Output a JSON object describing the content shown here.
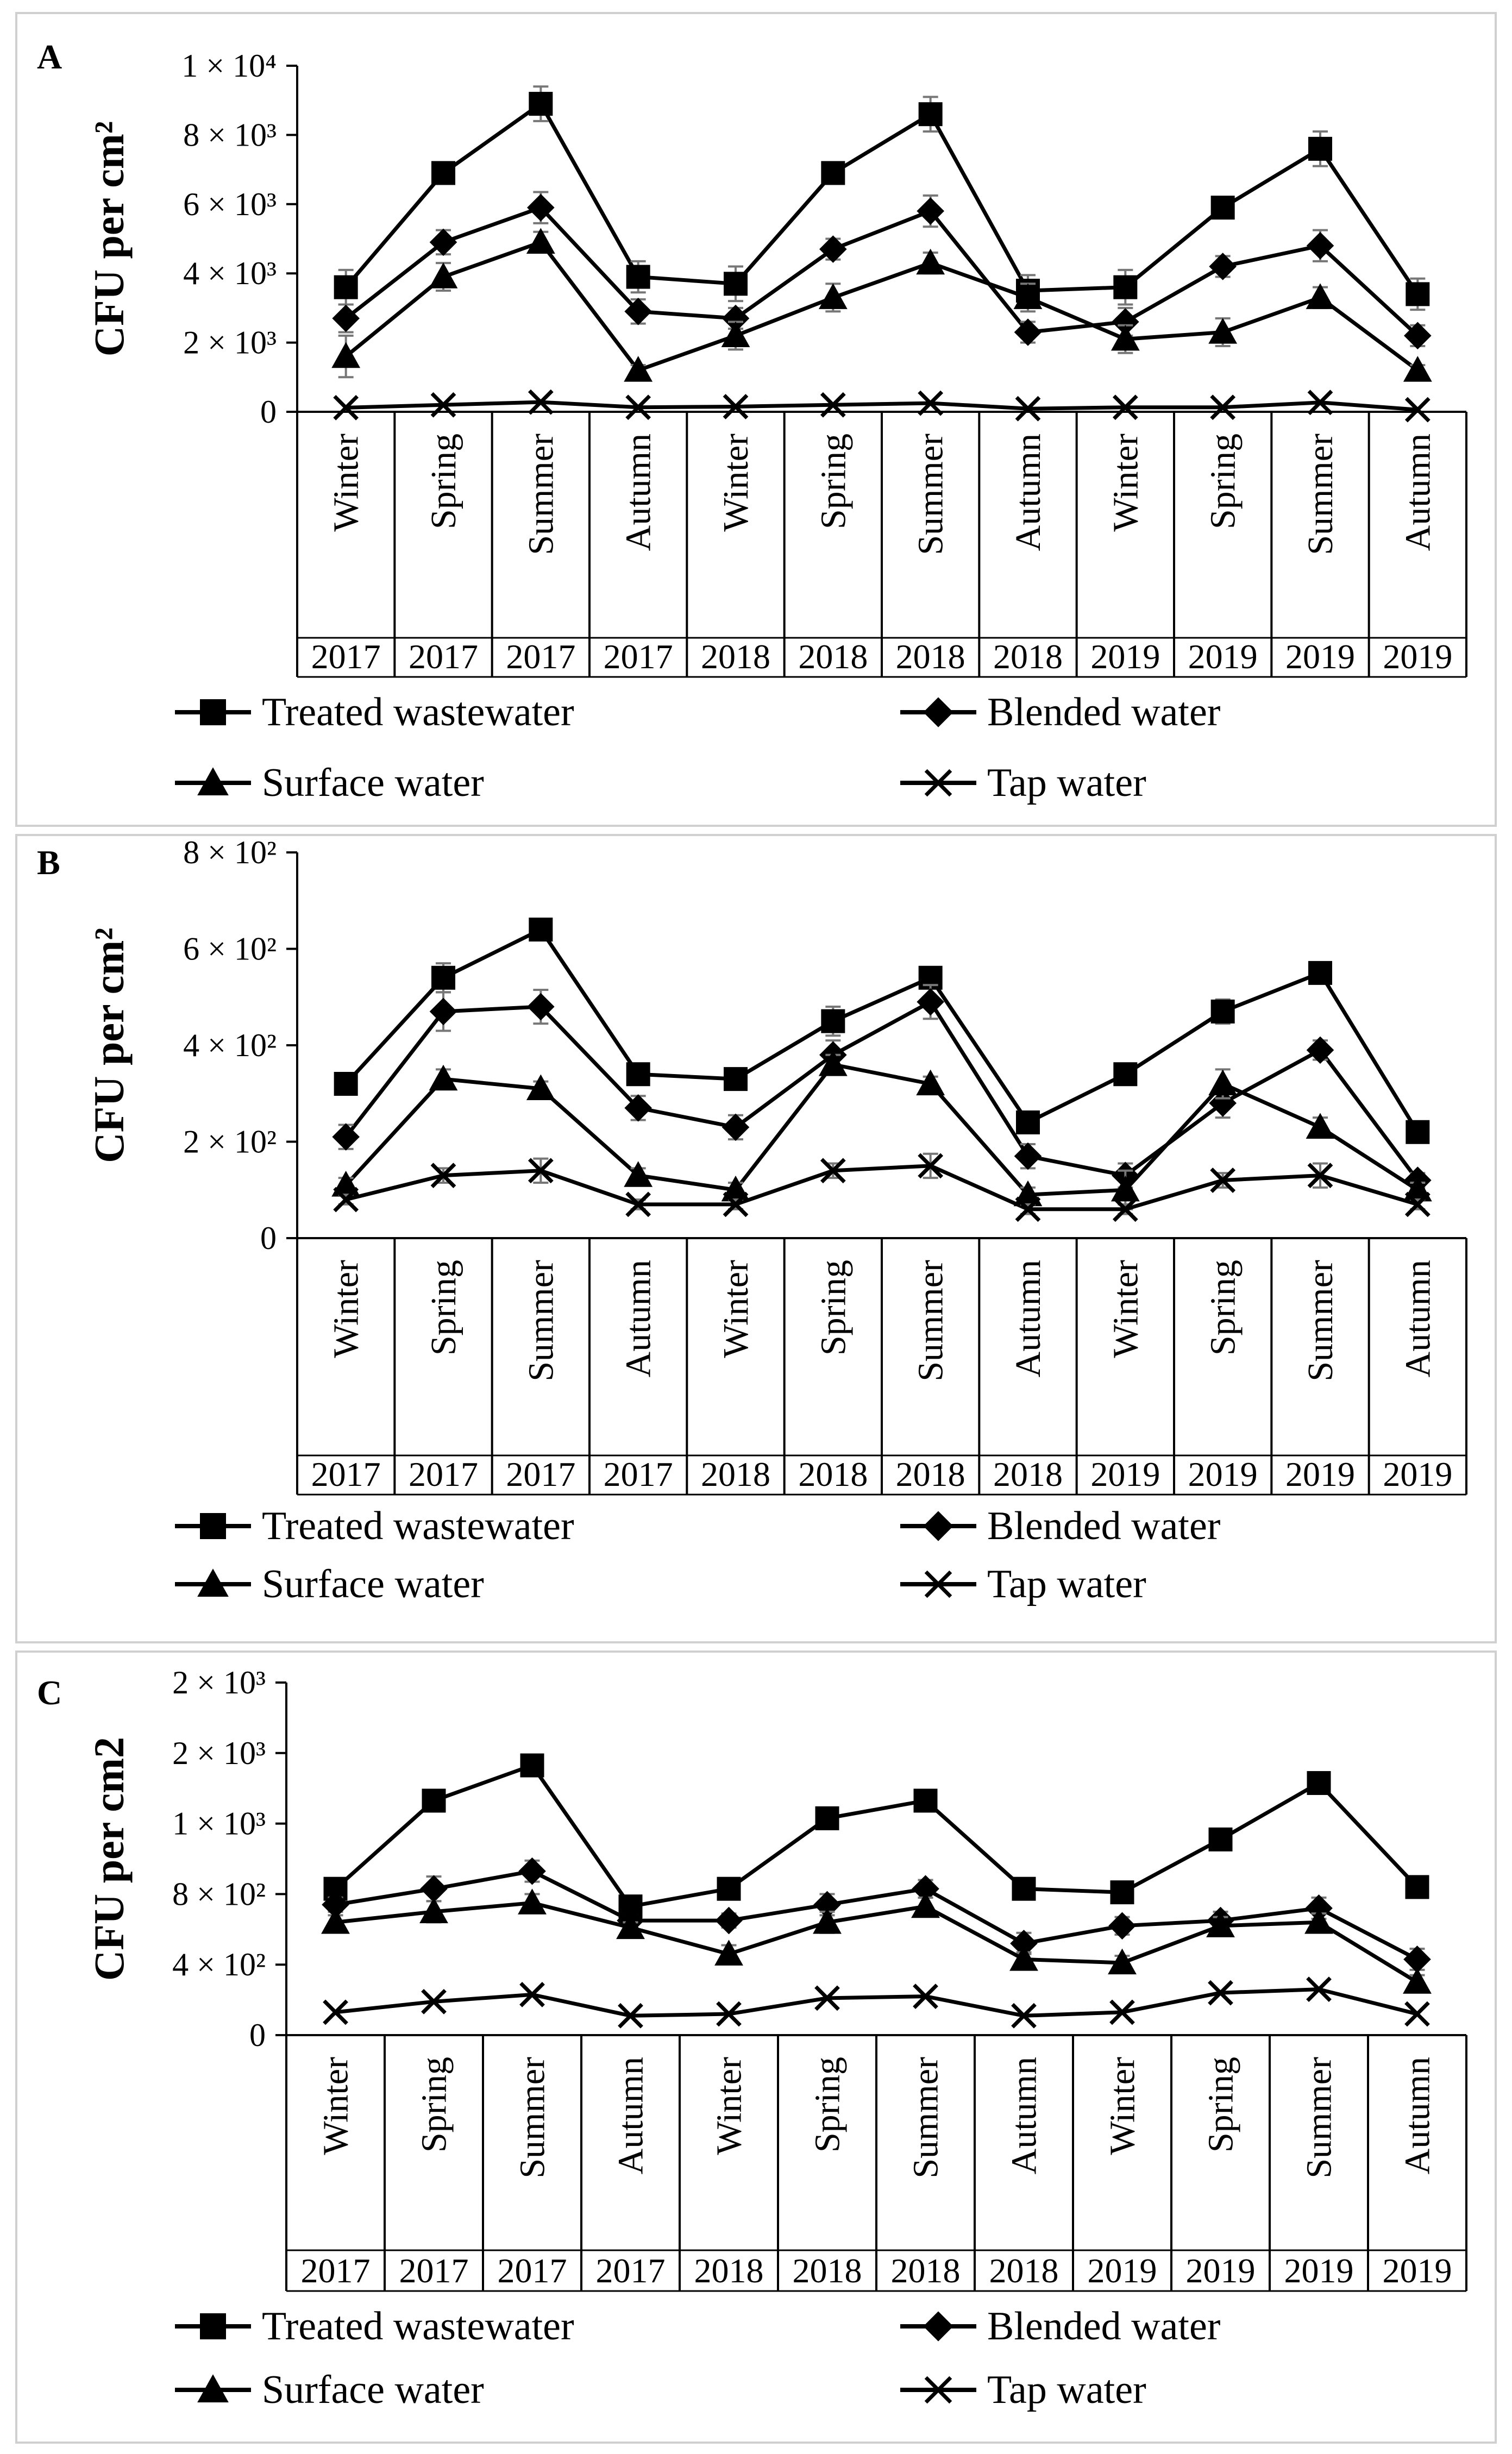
{
  "chart_data": [
    {
      "panel": "A",
      "type": "line",
      "ylabel": "CFU per cm²",
      "ylim": [
        0,
        10000
      ],
      "yticks": [
        {
          "value": 0,
          "label": "0"
        },
        {
          "value": 2000,
          "label": "2 × 10³"
        },
        {
          "value": 4000,
          "label": "4 × 10³"
        },
        {
          "value": 6000,
          "label": "6 × 10³"
        },
        {
          "value": 8000,
          "label": "8 × 10³"
        },
        {
          "value": 10000,
          "label": "1 × 10⁴"
        }
      ],
      "categories": [
        "Winter",
        "Spring",
        "Summer",
        "Autumn",
        "Winter",
        "Spring",
        "Summer",
        "Autumn",
        "Winter",
        "Spring",
        "Summer",
        "Autumn"
      ],
      "years": [
        "2017",
        "2017",
        "2017",
        "2017",
        "2018",
        "2018",
        "2018",
        "2018",
        "2019",
        "2019",
        "2019",
        "2019"
      ],
      "series": [
        {
          "name": "Treated wastewater",
          "marker": "square",
          "values": [
            3600,
            6900,
            8900,
            3900,
            3700,
            6900,
            8600,
            3500,
            3600,
            5900,
            7600,
            3400
          ],
          "errors": [
            500,
            250,
            500,
            450,
            500,
            250,
            500,
            450,
            500,
            250,
            500,
            450
          ]
        },
        {
          "name": "Blended water",
          "marker": "diamond",
          "values": [
            2700,
            4900,
            5900,
            2900,
            2700,
            4700,
            5800,
            2300,
            2600,
            4200,
            4800,
            2200
          ],
          "errors": [
            400,
            350,
            450,
            350,
            300,
            300,
            450,
            300,
            400,
            300,
            450,
            300
          ]
        },
        {
          "name": "Surface water",
          "marker": "triangle",
          "values": [
            1600,
            3900,
            4900,
            1200,
            2200,
            3300,
            4300,
            3300,
            2100,
            2300,
            3300,
            1200
          ],
          "errors": [
            600,
            400,
            300,
            150,
            400,
            400,
            300,
            400,
            400,
            400,
            300,
            150
          ]
        },
        {
          "name": "Tap water",
          "marker": "x",
          "values": [
            120,
            200,
            280,
            130,
            150,
            200,
            250,
            90,
            130,
            130,
            270,
            60
          ],
          "errors": [
            0,
            0,
            0,
            0,
            0,
            0,
            0,
            0,
            0,
            0,
            0,
            0
          ]
        }
      ]
    },
    {
      "panel": "B",
      "type": "line",
      "ylabel": "CFU per cm²",
      "ylim": [
        0,
        800
      ],
      "yticks": [
        {
          "value": 0,
          "label": "0"
        },
        {
          "value": 200,
          "label": "2 × 10²"
        },
        {
          "value": 400,
          "label": "4 × 10²"
        },
        {
          "value": 600,
          "label": "6 × 10²"
        },
        {
          "value": 800,
          "label": "8 × 10²"
        }
      ],
      "categories": [
        "Winter",
        "Spring",
        "Summer",
        "Autumn",
        "Winter",
        "Spring",
        "Summer",
        "Autumn",
        "Winter",
        "Spring",
        "Summer",
        "Autumn"
      ],
      "years": [
        "2017",
        "2017",
        "2017",
        "2017",
        "2018",
        "2018",
        "2018",
        "2018",
        "2019",
        "2019",
        "2019",
        "2019"
      ],
      "series": [
        {
          "name": "Treated wastewater",
          "marker": "square",
          "values": [
            320,
            540,
            640,
            340,
            330,
            450,
            540,
            240,
            340,
            470,
            550,
            220
          ],
          "errors": [
            15,
            30,
            15,
            20,
            15,
            30,
            15,
            20,
            15,
            25,
            15,
            20
          ]
        },
        {
          "name": "Blended water",
          "marker": "diamond",
          "values": [
            210,
            470,
            480,
            270,
            230,
            380,
            490,
            170,
            130,
            280,
            390,
            120
          ],
          "errors": [
            25,
            40,
            35,
            25,
            25,
            30,
            35,
            25,
            25,
            30,
            20,
            15
          ]
        },
        {
          "name": "Surface water",
          "marker": "triangle",
          "values": [
            110,
            330,
            310,
            130,
            100,
            360,
            320,
            90,
            100,
            320,
            230,
            100
          ],
          "errors": [
            15,
            20,
            15,
            15,
            15,
            20,
            15,
            15,
            40,
            30,
            20,
            15
          ]
        },
        {
          "name": "Tap water",
          "marker": "x",
          "values": [
            80,
            130,
            140,
            70,
            70,
            140,
            150,
            60,
            60,
            120,
            130,
            70
          ],
          "errors": [
            10,
            15,
            25,
            10,
            10,
            15,
            25,
            10,
            10,
            15,
            25,
            10
          ]
        }
      ]
    },
    {
      "panel": "C",
      "type": "line",
      "ylabel": "CFU per cm2",
      "ylim": [
        0,
        2000
      ],
      "yticks": [
        {
          "value": 0,
          "label": "0"
        },
        {
          "value": 400,
          "label": "4 × 10²"
        },
        {
          "value": 800,
          "label": "8 × 10²"
        },
        {
          "value": 1200,
          "label": "1 × 10³"
        },
        {
          "value": 1600,
          "label": "2 × 10³"
        },
        {
          "value": 2000,
          "label": "2 × 10³"
        }
      ],
      "categories": [
        "Winter",
        "Spring",
        "Summer",
        "Autumn",
        "Winter",
        "Spring",
        "Summer",
        "Autumn",
        "Winter",
        "Spring",
        "Summer",
        "Autumn"
      ],
      "years": [
        "2017",
        "2017",
        "2017",
        "2017",
        "2018",
        "2018",
        "2018",
        "2018",
        "2019",
        "2019",
        "2019",
        "2019"
      ],
      "series": [
        {
          "name": "Treated wastewater",
          "marker": "square",
          "values": [
            830,
            1330,
            1530,
            730,
            830,
            1230,
            1330,
            830,
            810,
            1110,
            1430,
            840
          ],
          "errors": [
            25,
            40,
            35,
            25,
            25,
            30,
            35,
            25,
            25,
            30,
            35,
            25
          ]
        },
        {
          "name": "Blended water",
          "marker": "diamond",
          "values": [
            740,
            830,
            930,
            650,
            650,
            740,
            830,
            520,
            620,
            650,
            720,
            430
          ],
          "errors": [
            40,
            70,
            60,
            30,
            40,
            60,
            50,
            60,
            50,
            50,
            60,
            60
          ]
        },
        {
          "name": "Surface water",
          "marker": "triangle",
          "values": [
            640,
            700,
            750,
            610,
            460,
            640,
            730,
            430,
            410,
            620,
            640,
            300
          ],
          "errors": [
            40,
            60,
            50,
            30,
            50,
            60,
            50,
            40,
            40,
            50,
            50,
            40
          ]
        },
        {
          "name": "Tap water",
          "marker": "x",
          "values": [
            130,
            190,
            230,
            110,
            120,
            210,
            220,
            110,
            130,
            240,
            260,
            120
          ],
          "errors": [
            0,
            0,
            0,
            0,
            0,
            0,
            0,
            0,
            0,
            0,
            0,
            0
          ]
        }
      ]
    }
  ],
  "panels": [
    {
      "letter": "A",
      "legend": [
        "Treated wastewater",
        "Blended water",
        "Surface water",
        "Tap water"
      ]
    },
    {
      "letter": "B",
      "legend": [
        "Treated wastewater",
        "Blended water",
        "Surface water",
        "Tap water"
      ]
    },
    {
      "letter": "C",
      "legend": [
        "Treated wastewater",
        "Blended water",
        "Surface water",
        "Tap water"
      ]
    }
  ]
}
